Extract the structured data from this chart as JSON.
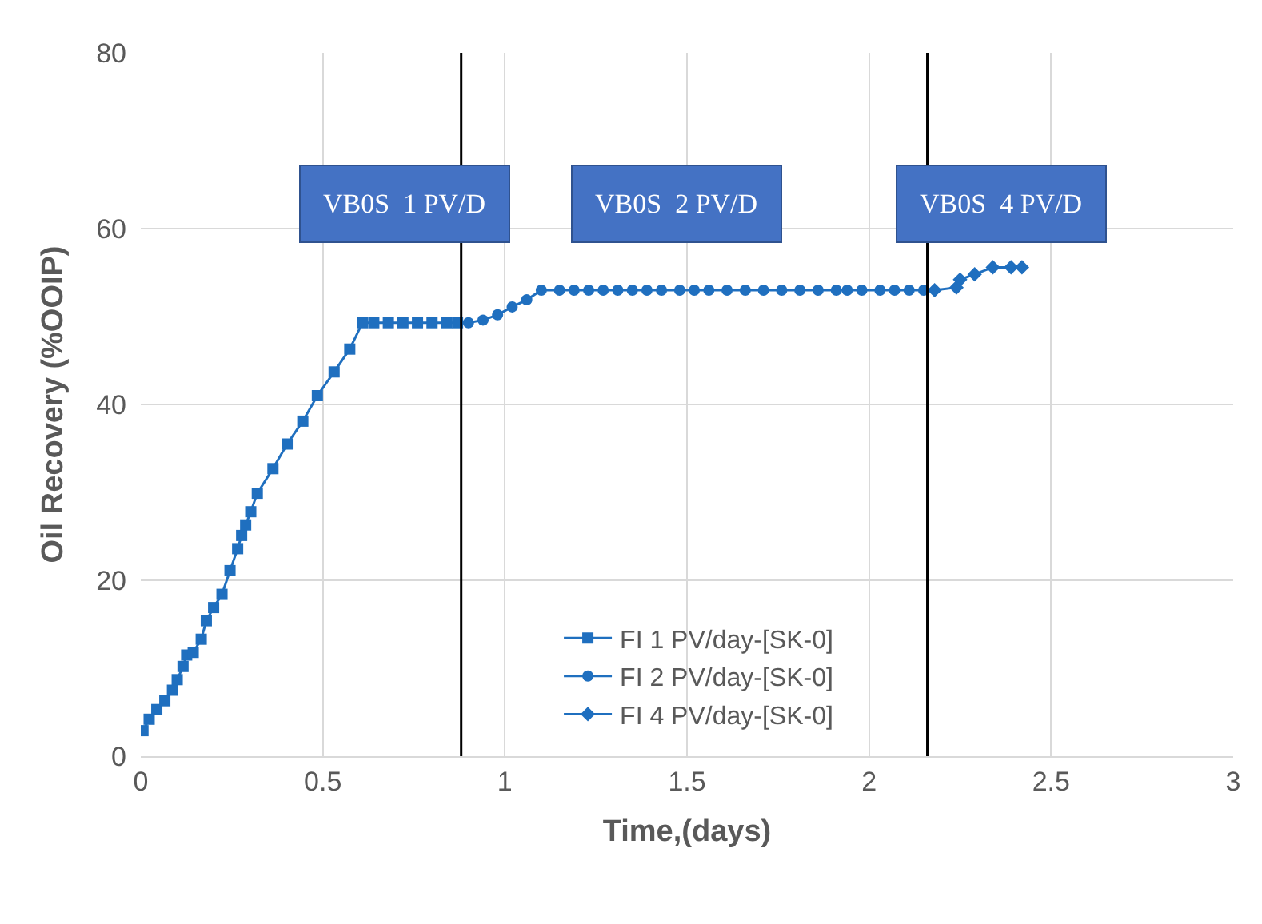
{
  "chart_data": {
    "type": "line",
    "xlabel": "Time,(days)",
    "ylabel": "Oil Recovery (%OOIP)",
    "xlim": [
      0,
      3
    ],
    "ylim": [
      0,
      80
    ],
    "xticks": [
      0,
      0.5,
      1,
      1.5,
      2,
      2.5,
      3
    ],
    "yticks": [
      0,
      20,
      40,
      60,
      80
    ],
    "grid": true,
    "legend": "bottom",
    "line_style": "solid",
    "series": [
      {
        "name": "FI 1 PV/day-[SK-0]",
        "color": "#1f6fbf",
        "marker": "square",
        "x": [
          0.006,
          0.023,
          0.044,
          0.066,
          0.087,
          0.1,
          0.116,
          0.126,
          0.144,
          0.166,
          0.18,
          0.2,
          0.223,
          0.245,
          0.266,
          0.277,
          0.288,
          0.302,
          0.32,
          0.363,
          0.402,
          0.445,
          0.485,
          0.531,
          0.574,
          0.609,
          0.64,
          0.68,
          0.72,
          0.76,
          0.8,
          0.84,
          0.87
        ],
        "values": [
          2.9,
          4.2,
          5.3,
          6.3,
          7.5,
          8.7,
          10.2,
          11.5,
          11.8,
          13.3,
          15.4,
          16.9,
          18.4,
          21.1,
          23.6,
          25.1,
          26.3,
          27.8,
          29.9,
          32.7,
          35.5,
          38.1,
          41.0,
          43.7,
          46.3,
          49.3,
          49.3,
          49.3,
          49.3,
          49.3,
          49.3,
          49.3,
          49.3
        ]
      },
      {
        "name": "FI 2 PV/day-[SK-0]",
        "color": "#1f6fbf",
        "marker": "circle",
        "x": [
          0.9,
          0.94,
          0.98,
          1.02,
          1.06,
          1.1,
          1.15,
          1.19,
          1.23,
          1.27,
          1.31,
          1.35,
          1.39,
          1.43,
          1.48,
          1.52,
          1.56,
          1.61,
          1.66,
          1.71,
          1.76,
          1.81,
          1.86,
          1.91,
          1.94,
          1.98,
          2.03,
          2.07,
          2.11,
          2.15
        ],
        "values": [
          49.3,
          49.6,
          50.2,
          51.1,
          51.9,
          53.0,
          53.0,
          53.0,
          53.0,
          53.0,
          53.0,
          53.0,
          53.0,
          53.0,
          53.0,
          53.0,
          53.0,
          53.0,
          53.0,
          53.0,
          53.0,
          53.0,
          53.0,
          53.0,
          53.0,
          53.0,
          53.0,
          53.0,
          53.0,
          53.0
        ]
      },
      {
        "name": "FI 4 PV/day-[SK-0]",
        "color": "#1f6fbf",
        "marker": "diamond",
        "x": [
          2.18,
          2.24,
          2.25,
          2.29,
          2.34,
          2.39,
          2.42
        ],
        "values": [
          53.0,
          53.3,
          54.2,
          54.8,
          55.6,
          55.6,
          55.6
        ]
      }
    ],
    "ref_lines": [
      {
        "axis": "x",
        "value": 0.88,
        "color": "#000000"
      },
      {
        "axis": "x",
        "value": 2.16,
        "color": "#000000"
      }
    ],
    "annotations": [
      "VB0S  1 PV/D",
      "VB0S  2 PV/D",
      "VB0S  4 PV/D"
    ]
  }
}
